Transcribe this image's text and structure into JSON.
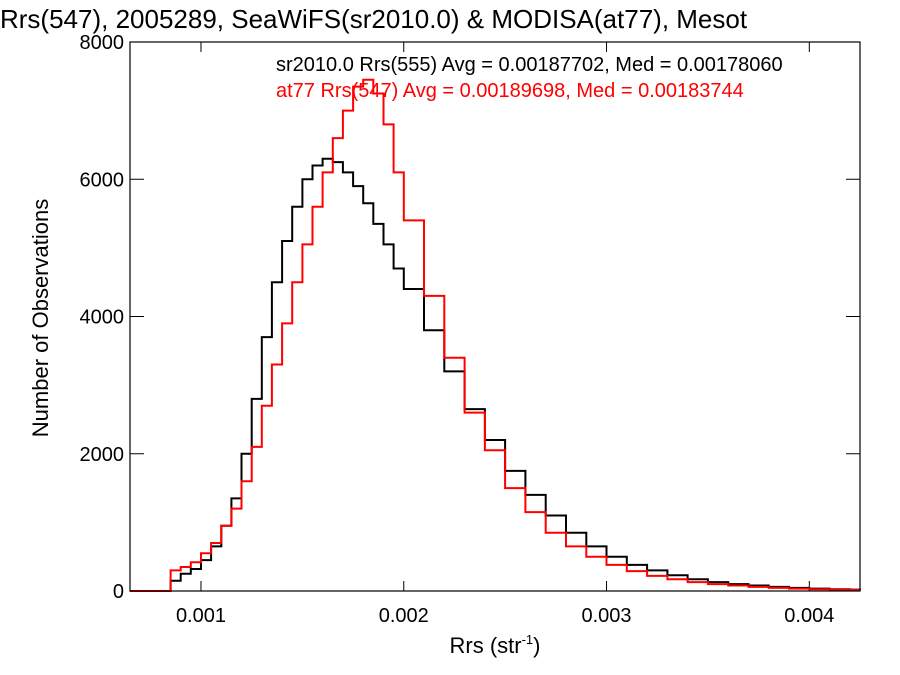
{
  "chart_data": {
    "type": "line",
    "title": "Rrs(547), 2005289, SeaWiFS(sr2010.0) & MODISA(at77), Mesot",
    "xlabel": "Rrs (str",
    "xlabel_sup": "-1",
    "xlabel_close": ")",
    "ylabel": "Number of Observations",
    "xlim": [
      0.00065,
      0.00425
    ],
    "ylim": [
      0,
      8000
    ],
    "x_ticks": [
      0.001,
      0.002,
      0.003,
      0.004
    ],
    "x_tick_labels": [
      "0.001",
      "0.002",
      "0.003",
      "0.004"
    ],
    "y_ticks": [
      0,
      2000,
      4000,
      6000,
      8000
    ],
    "y_tick_labels": [
      "0",
      "2000",
      "4000",
      "6000",
      "8000"
    ],
    "grid": false,
    "series": [
      {
        "name": "sr2010.0 Rrs(555) Avg = 0.00187702, Med = 0.00178060",
        "color": "#000000",
        "x": [
          0.00065,
          0.0008,
          0.00085,
          0.0009,
          0.00095,
          0.001,
          0.00105,
          0.0011,
          0.00115,
          0.0012,
          0.00125,
          0.0013,
          0.00135,
          0.0014,
          0.00145,
          0.0015,
          0.00155,
          0.0016,
          0.00165,
          0.0017,
          0.00175,
          0.0018,
          0.00185,
          0.0019,
          0.00195,
          0.002,
          0.0021,
          0.0022,
          0.0023,
          0.0024,
          0.0025,
          0.0026,
          0.0027,
          0.0028,
          0.0029,
          0.003,
          0.0031,
          0.0032,
          0.0033,
          0.0034,
          0.0035,
          0.0036,
          0.0037,
          0.0038,
          0.0039,
          0.004,
          0.0041,
          0.0042,
          0.00425
        ],
        "y": [
          0,
          0,
          150,
          250,
          320,
          450,
          650,
          950,
          1350,
          2000,
          2800,
          3700,
          4500,
          5100,
          5600,
          6000,
          6200,
          6300,
          6250,
          6100,
          5900,
          5650,
          5350,
          5050,
          4700,
          4400,
          3800,
          3200,
          2650,
          2200,
          1750,
          1400,
          1100,
          850,
          650,
          500,
          380,
          300,
          230,
          170,
          130,
          100,
          80,
          60,
          45,
          35,
          25,
          20,
          15
        ]
      },
      {
        "name": "at77 Rrs(547) Avg = 0.00189698, Med = 0.00183744",
        "color": "#ff0000",
        "x": [
          0.00065,
          0.0008,
          0.00085,
          0.0009,
          0.00095,
          0.001,
          0.00105,
          0.0011,
          0.00115,
          0.0012,
          0.00125,
          0.0013,
          0.00135,
          0.0014,
          0.00145,
          0.0015,
          0.00155,
          0.0016,
          0.00165,
          0.0017,
          0.00175,
          0.0018,
          0.00185,
          0.0019,
          0.00195,
          0.002,
          0.0021,
          0.0022,
          0.0023,
          0.0024,
          0.0025,
          0.0026,
          0.0027,
          0.0028,
          0.0029,
          0.003,
          0.0031,
          0.0032,
          0.0033,
          0.0034,
          0.0035,
          0.0036,
          0.0037,
          0.0038,
          0.0039,
          0.004,
          0.0041,
          0.0042,
          0.00425
        ],
        "y": [
          0,
          0,
          300,
          350,
          420,
          550,
          700,
          950,
          1200,
          1600,
          2100,
          2700,
          3300,
          3900,
          4500,
          5050,
          5600,
          6100,
          6600,
          7000,
          7350,
          7450,
          7250,
          6800,
          6100,
          5400,
          4300,
          3400,
          2600,
          2050,
          1500,
          1150,
          850,
          650,
          500,
          380,
          290,
          220,
          170,
          130,
          100,
          80,
          60,
          45,
          35,
          25,
          20,
          15,
          10
        ]
      }
    ]
  }
}
